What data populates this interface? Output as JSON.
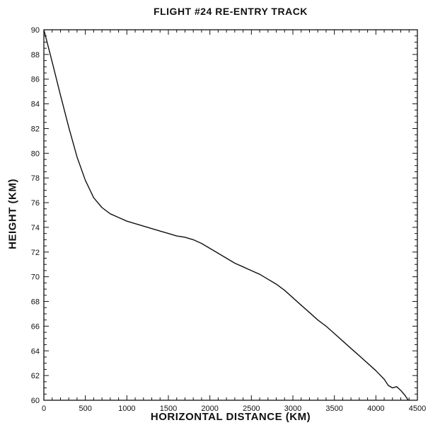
{
  "chart_data": {
    "type": "line",
    "title": "FLIGHT #24 RE-ENTRY TRACK",
    "xlabel": "HORIZONTAL DISTANCE (KM)",
    "ylabel": "HEIGHT (KM)",
    "xlim": [
      0,
      4500
    ],
    "ylim": [
      60,
      90
    ],
    "xticks": [
      0,
      500,
      1000,
      1500,
      2000,
      2500,
      3000,
      3500,
      4000,
      4500
    ],
    "yticks": [
      60,
      62,
      64,
      66,
      68,
      70,
      72,
      74,
      76,
      78,
      80,
      82,
      84,
      86,
      88,
      90
    ],
    "x_minor_step": 100,
    "y_minor_step": 0.5,
    "grid": false,
    "legend": "none",
    "line_color": "#111111",
    "series": [
      {
        "x": [
          0,
          50,
          100,
          200,
          300,
          400,
          500,
          600,
          700,
          800,
          900,
          1000,
          1100,
          1200,
          1300,
          1400,
          1500,
          1600,
          1700,
          1800,
          1900,
          2000,
          2100,
          2200,
          2300,
          2400,
          2500,
          2600,
          2700,
          2800,
          2900,
          3000,
          3100,
          3200,
          3300,
          3400,
          3500,
          3600,
          3700,
          3800,
          3900,
          4000,
          4100,
          4150,
          4200,
          4250,
          4300,
          4350,
          4400,
          4450,
          4500
        ],
        "y": [
          90,
          88.7,
          87.4,
          84.7,
          82.1,
          79.7,
          77.8,
          76.4,
          75.6,
          75.1,
          74.8,
          74.5,
          74.3,
          74.1,
          73.9,
          73.7,
          73.5,
          73.3,
          73.2,
          73.0,
          72.7,
          72.3,
          71.9,
          71.5,
          71.1,
          70.8,
          70.5,
          70.2,
          69.8,
          69.4,
          68.9,
          68.3,
          67.7,
          67.1,
          66.5,
          66.0,
          65.4,
          64.8,
          64.2,
          63.6,
          63.0,
          62.4,
          61.7,
          61.2,
          61.0,
          61.1,
          60.8,
          60.4,
          59.9,
          59.2,
          58.4
        ]
      }
    ]
  }
}
